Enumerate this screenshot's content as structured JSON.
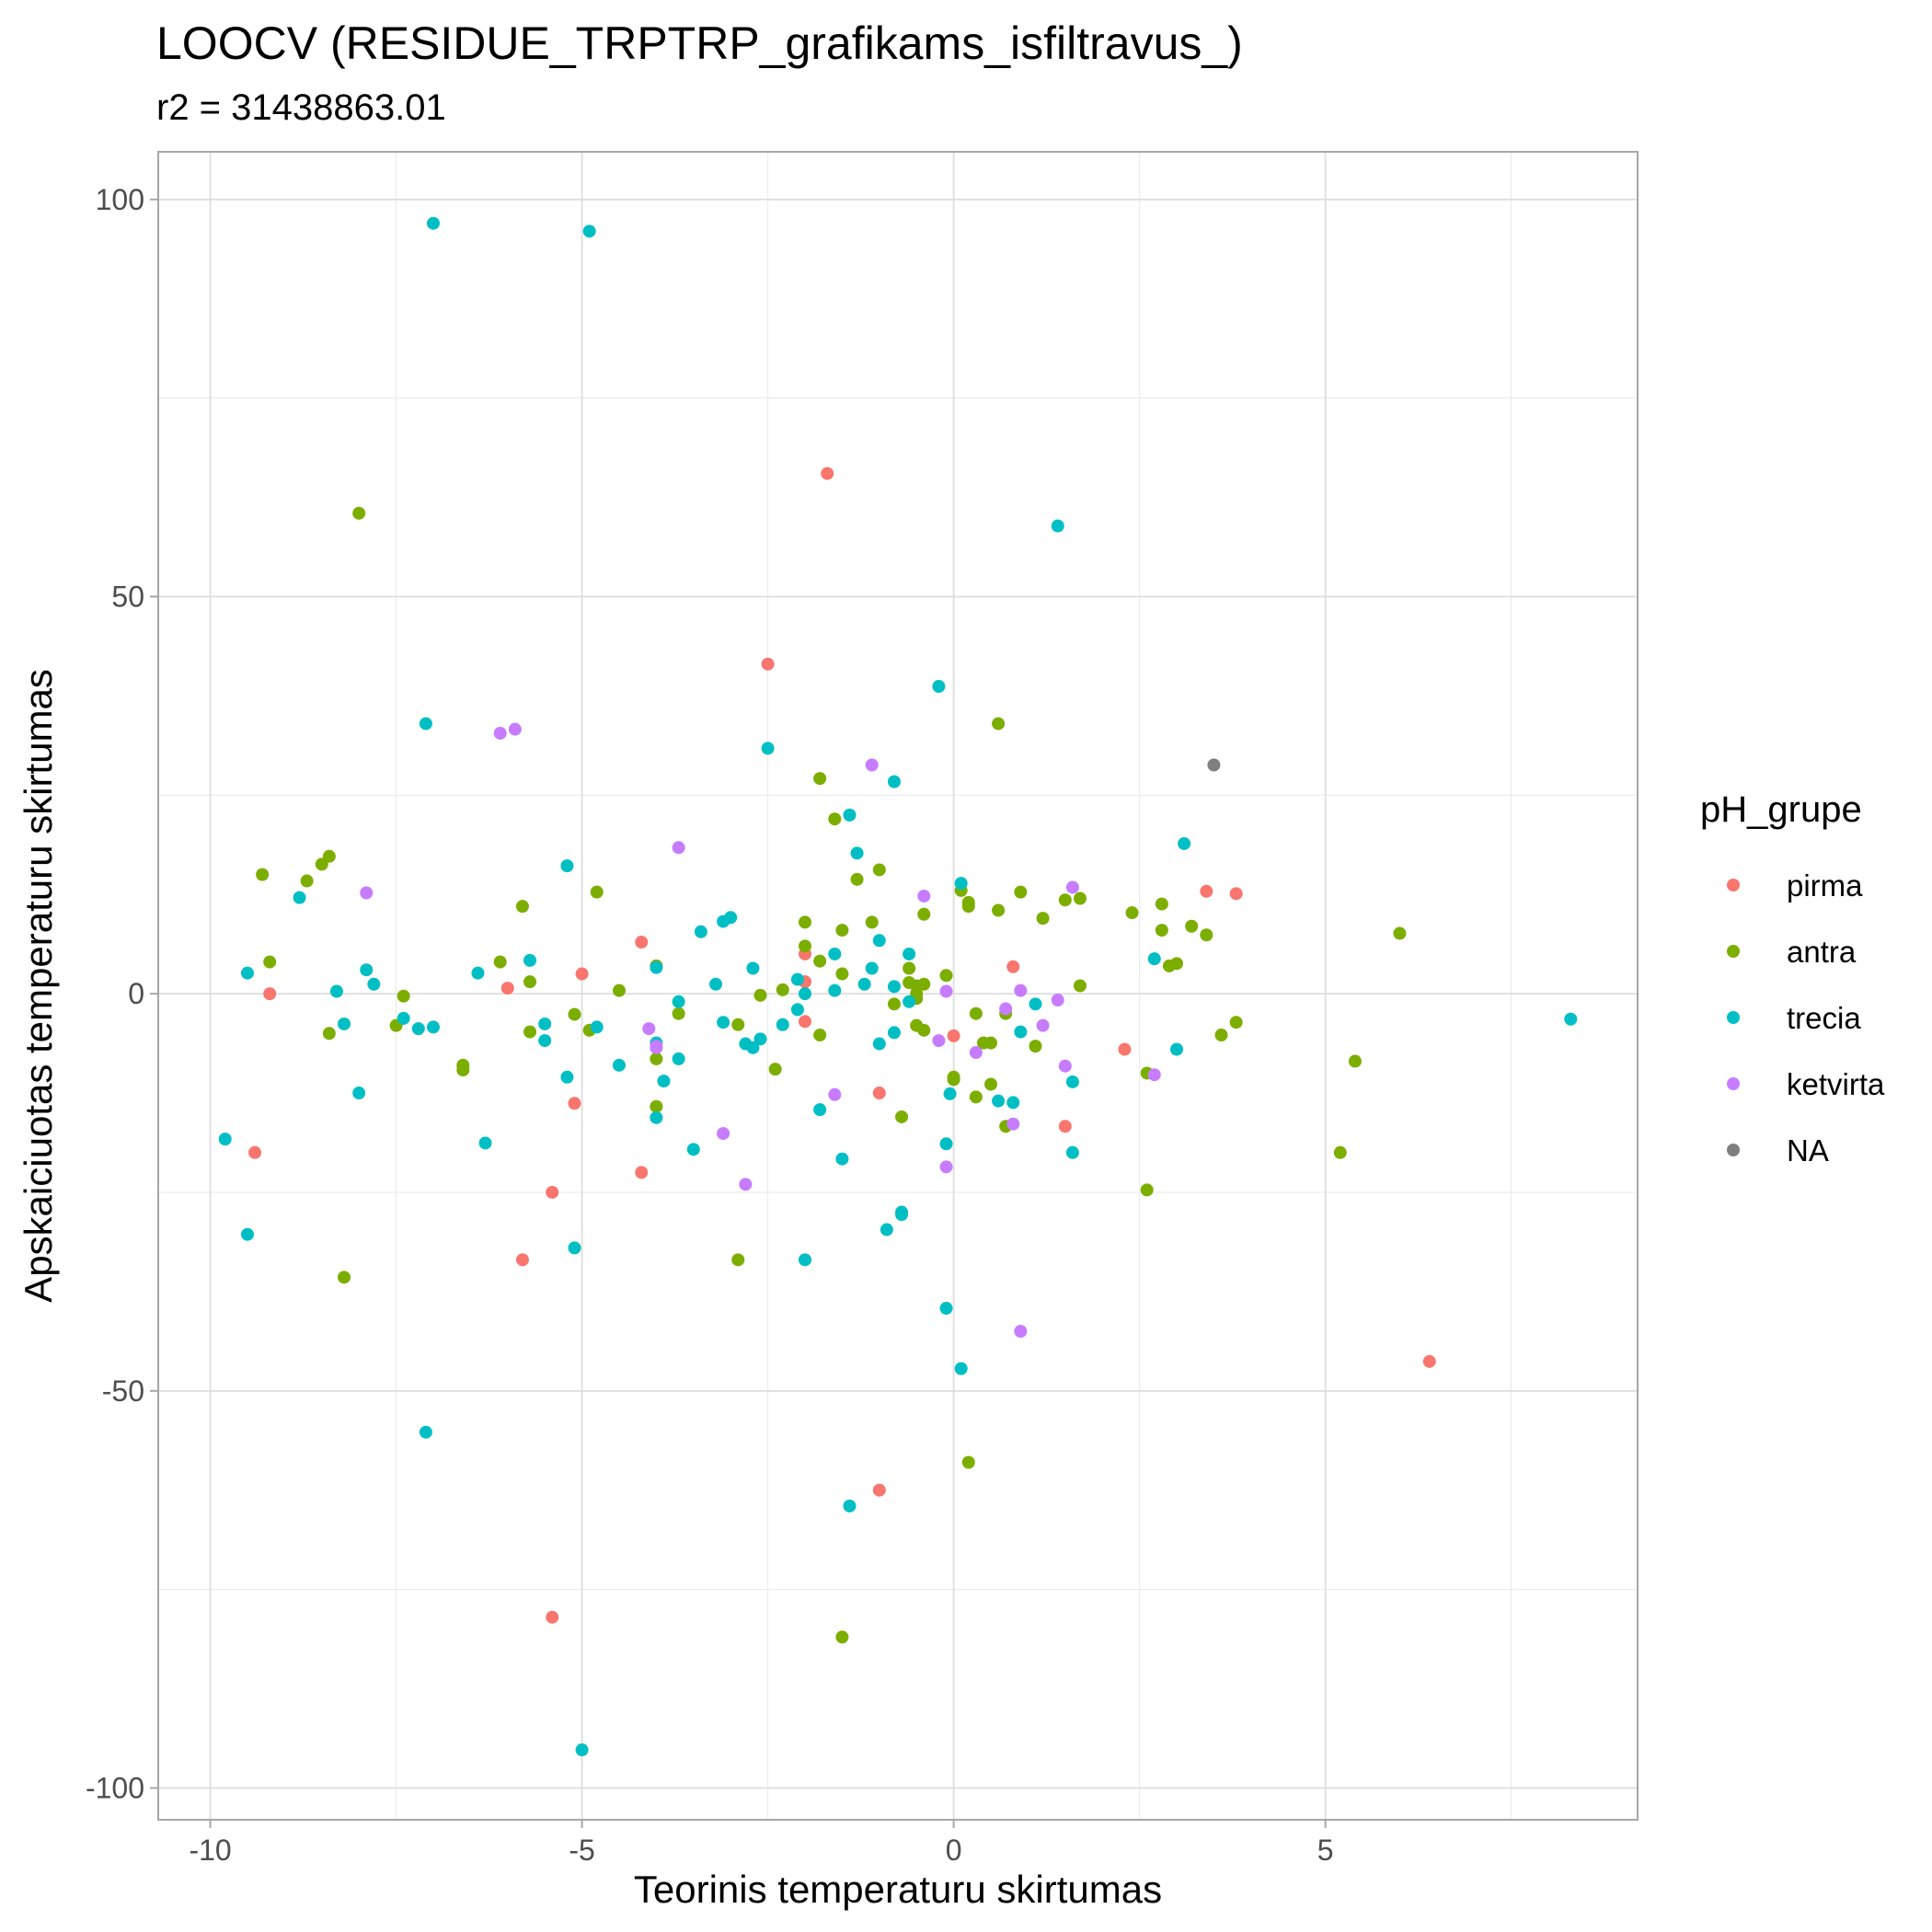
{
  "chart_data": {
    "type": "scatter",
    "title": "LOOCV (RESIDUE_TRPTRP_grafikams_isfiltravus_)",
    "subtitle": "r2 = 31438863.01",
    "xlabel": "Teorinis temperaturu skirtumas",
    "ylabel": "Apskaiciuotas temperaturu skirtumas",
    "xlim": [
      -10.7,
      9.2
    ],
    "ylim": [
      -104,
      106
    ],
    "x_ticks": [
      -10,
      -5,
      0,
      5
    ],
    "x_tick_labels": [
      "-10",
      "-5",
      "0",
      "5"
    ],
    "y_ticks": [
      -100,
      -50,
      0,
      50,
      100
    ],
    "y_tick_labels": [
      "-100",
      "-50",
      "0",
      "50",
      "100"
    ],
    "grid": true,
    "legend": {
      "title": "pH_grupe",
      "position": "right",
      "entries": [
        {
          "label": "pirma",
          "color": "#F8766D"
        },
        {
          "label": "antra",
          "color": "#7CAE00"
        },
        {
          "label": "trecia",
          "color": "#00BFC4"
        },
        {
          "label": "ketvirta",
          "color": "#C77CFF"
        },
        {
          "label": "NA",
          "color": "#7F7F7F"
        }
      ]
    },
    "series": [
      {
        "name": "pirma",
        "color": "#F8766D",
        "points": [
          [
            -9.4,
            -20
          ],
          [
            -9.2,
            0
          ],
          [
            -6,
            0.7
          ],
          [
            -5.8,
            -33.5
          ],
          [
            -5.4,
            -25
          ],
          [
            -5.4,
            -78.5
          ],
          [
            -5.1,
            -13.8
          ],
          [
            -5,
            2.5
          ],
          [
            -4.2,
            6.5
          ],
          [
            -4.2,
            -22.5
          ],
          [
            -2.5,
            41.5
          ],
          [
            -2,
            5
          ],
          [
            -2,
            1.5
          ],
          [
            -2,
            -3.5
          ],
          [
            -1.7,
            65.5
          ],
          [
            -1,
            -12.5
          ],
          [
            -1,
            -62.5
          ],
          [
            0,
            -5.3
          ],
          [
            0.8,
            3.4
          ],
          [
            1.5,
            -16.7
          ],
          [
            2.3,
            -7
          ],
          [
            3.4,
            12.9
          ],
          [
            3.8,
            12.6
          ],
          [
            6.4,
            -46.3
          ]
        ]
      },
      {
        "name": "antra",
        "color": "#7CAE00",
        "points": [
          [
            -9.3,
            15
          ],
          [
            -9.2,
            4
          ],
          [
            -8.7,
            14.2
          ],
          [
            -8.5,
            16.3
          ],
          [
            -8.4,
            17.3
          ],
          [
            -8.4,
            -5
          ],
          [
            -8.2,
            -35.7
          ],
          [
            -8,
            60.5
          ],
          [
            -7.5,
            -4
          ],
          [
            -7.4,
            -0.3
          ],
          [
            -6.6,
            -9
          ],
          [
            -6.6,
            -9.6
          ],
          [
            -6.1,
            4
          ],
          [
            -5.8,
            11
          ],
          [
            -5.7,
            1.5
          ],
          [
            -5.7,
            -4.8
          ],
          [
            -5.1,
            -2.6
          ],
          [
            -4.9,
            -4.6
          ],
          [
            -4.8,
            12.8
          ],
          [
            -4.5,
            0.4
          ],
          [
            -4,
            3.5
          ],
          [
            -4,
            -8.2
          ],
          [
            -4,
            -14.2
          ],
          [
            -3.7,
            -2.5
          ],
          [
            -2.9,
            -3.9
          ],
          [
            -2.9,
            -33.5
          ],
          [
            -2.6,
            -0.2
          ],
          [
            -2.4,
            -9.5
          ],
          [
            -2.3,
            0.5
          ],
          [
            -2,
            9
          ],
          [
            -2,
            6
          ],
          [
            -1.8,
            4.1
          ],
          [
            -1.8,
            -5.2
          ],
          [
            -1.8,
            27.1
          ],
          [
            -1.6,
            22
          ],
          [
            -1.5,
            8
          ],
          [
            -1.5,
            2.5
          ],
          [
            -1.5,
            -81
          ],
          [
            -1.3,
            14.4
          ],
          [
            -1.1,
            9
          ],
          [
            -1,
            15.6
          ],
          [
            -0.8,
            -1.3
          ],
          [
            -0.7,
            -15.5
          ],
          [
            -0.6,
            3.2
          ],
          [
            -0.6,
            1.4
          ],
          [
            -0.5,
            1
          ],
          [
            -0.5,
            0
          ],
          [
            -0.5,
            -0.6
          ],
          [
            -0.5,
            -4
          ],
          [
            -0.4,
            10
          ],
          [
            -0.4,
            1.2
          ],
          [
            -0.4,
            -4.6
          ],
          [
            -0.1,
            2.3
          ],
          [
            0,
            -10.5
          ],
          [
            0,
            -10.8
          ],
          [
            0.1,
            13
          ],
          [
            0.2,
            11.5
          ],
          [
            0.2,
            11
          ],
          [
            0.2,
            -59
          ],
          [
            0.3,
            -13
          ],
          [
            0.3,
            -2.5
          ],
          [
            0.4,
            -6.2
          ],
          [
            0.5,
            -6.2
          ],
          [
            0.5,
            -11.4
          ],
          [
            0.6,
            34
          ],
          [
            0.6,
            10.5
          ],
          [
            0.7,
            -2.5
          ],
          [
            0.7,
            -16.7
          ],
          [
            0.9,
            12.8
          ],
          [
            1.1,
            -6.6
          ],
          [
            1.2,
            9.5
          ],
          [
            1.5,
            11.8
          ],
          [
            1.7,
            12
          ],
          [
            1.7,
            1
          ],
          [
            2.4,
            10.2
          ],
          [
            2.6,
            -24.7
          ],
          [
            2.6,
            -10
          ],
          [
            2.8,
            11.3
          ],
          [
            2.8,
            8
          ],
          [
            2.9,
            3.5
          ],
          [
            3,
            3.8
          ],
          [
            3.2,
            8.5
          ],
          [
            3.4,
            7.4
          ],
          [
            3.6,
            -5.2
          ],
          [
            3.8,
            -3.6
          ],
          [
            5.2,
            -20
          ],
          [
            5.4,
            -8.5
          ],
          [
            6,
            7.6
          ]
        ]
      },
      {
        "name": "trecia",
        "color": "#00BFC4",
        "points": [
          [
            -9.8,
            -18.3
          ],
          [
            -9.5,
            2.6
          ],
          [
            -9.5,
            -30.3
          ],
          [
            -8.8,
            12.1
          ],
          [
            -8.3,
            0.3
          ],
          [
            -8.2,
            -3.8
          ],
          [
            -8,
            -12.5
          ],
          [
            -7.9,
            3
          ],
          [
            -7.8,
            1.2
          ],
          [
            -7.4,
            -3.1
          ],
          [
            -7.2,
            -4.4
          ],
          [
            -7.1,
            34
          ],
          [
            -7.1,
            -55.2
          ],
          [
            -7,
            97
          ],
          [
            -7,
            -4.2
          ],
          [
            -6.4,
            2.6
          ],
          [
            -6.3,
            -18.8
          ],
          [
            -5.7,
            4.2
          ],
          [
            -5.5,
            -3.8
          ],
          [
            -5.5,
            -5.9
          ],
          [
            -5.2,
            16.1
          ],
          [
            -5.2,
            -10.5
          ],
          [
            -5.1,
            -32
          ],
          [
            -5,
            -95.2
          ],
          [
            -4.9,
            96
          ],
          [
            -4.8,
            -4.2
          ],
          [
            -4.5,
            -9
          ],
          [
            -4,
            3.3
          ],
          [
            -4,
            -6.2
          ],
          [
            -4,
            -15.6
          ],
          [
            -3.9,
            -11
          ],
          [
            -3.7,
            -1
          ],
          [
            -3.7,
            -8.2
          ],
          [
            -3.5,
            -19.6
          ],
          [
            -3.4,
            7.8
          ],
          [
            -3.2,
            1.2
          ],
          [
            -3.1,
            9.1
          ],
          [
            -3.1,
            -3.6
          ],
          [
            -3,
            9.6
          ],
          [
            -2.8,
            -6.3
          ],
          [
            -2.7,
            3.2
          ],
          [
            -2.7,
            -6.8
          ],
          [
            -2.6,
            -5.7
          ],
          [
            -2.5,
            30.9
          ],
          [
            -2.3,
            -3.9
          ],
          [
            -2.1,
            1.8
          ],
          [
            -2.1,
            -2
          ],
          [
            -2,
            0
          ],
          [
            -2,
            -33.5
          ],
          [
            -1.8,
            -14.6
          ],
          [
            -1.6,
            5
          ],
          [
            -1.6,
            0.4
          ],
          [
            -1.5,
            -20.8
          ],
          [
            -1.4,
            22.5
          ],
          [
            -1.4,
            -64.5
          ],
          [
            -1.3,
            17.7
          ],
          [
            -1.2,
            1.2
          ],
          [
            -1.1,
            3.2
          ],
          [
            -1,
            -6.3
          ],
          [
            -1,
            6.7
          ],
          [
            -0.9,
            -29.7
          ],
          [
            -0.8,
            26.7
          ],
          [
            -0.8,
            0.9
          ],
          [
            -0.8,
            -4.9
          ],
          [
            -0.7,
            -27.5
          ],
          [
            -0.7,
            -27.8
          ],
          [
            -0.6,
            -1
          ],
          [
            -0.6,
            5
          ],
          [
            -0.2,
            38.7
          ],
          [
            -0.1,
            -18.9
          ],
          [
            -0.1,
            -39.6
          ],
          [
            -0.05,
            -12.6
          ],
          [
            0.1,
            13.9
          ],
          [
            0.1,
            -47.2
          ],
          [
            0.6,
            -13.5
          ],
          [
            0.8,
            -13.7
          ],
          [
            0.9,
            -4.8
          ],
          [
            1.1,
            -1.3
          ],
          [
            1.4,
            58.9
          ],
          [
            1.6,
            -11.1
          ],
          [
            1.6,
            -20
          ],
          [
            2.7,
            4.4
          ],
          [
            3,
            -7
          ],
          [
            3.1,
            18.9
          ],
          [
            8.3,
            -3.2
          ]
        ]
      },
      {
        "name": "ketvirta",
        "color": "#C77CFF",
        "points": [
          [
            -7.9,
            12.7
          ],
          [
            -6.1,
            32.8
          ],
          [
            -5.9,
            33.3
          ],
          [
            -4.1,
            -4.4
          ],
          [
            -4,
            -6.6
          ],
          [
            -4,
            -6.8
          ],
          [
            -3.7,
            18.4
          ],
          [
            -3.1,
            -17.6
          ],
          [
            -2.8,
            -24
          ],
          [
            -1.6,
            -12.7
          ],
          [
            -1.1,
            28.8
          ],
          [
            -0.4,
            12.3
          ],
          [
            -0.2,
            -5.9
          ],
          [
            -0.1,
            0.3
          ],
          [
            -0.1,
            -21.8
          ],
          [
            0.3,
            -7.4
          ],
          [
            0.7,
            -1.9
          ],
          [
            0.8,
            -16.4
          ],
          [
            0.9,
            0.4
          ],
          [
            0.9,
            -42.5
          ],
          [
            1.2,
            -4
          ],
          [
            1.4,
            -0.8
          ],
          [
            1.5,
            -9.1
          ],
          [
            1.6,
            13.4
          ],
          [
            2.7,
            -10.2
          ]
        ]
      },
      {
        "name": "NA",
        "color": "#7F7F7F",
        "points": [
          [
            3.5,
            28.8
          ]
        ]
      }
    ]
  }
}
